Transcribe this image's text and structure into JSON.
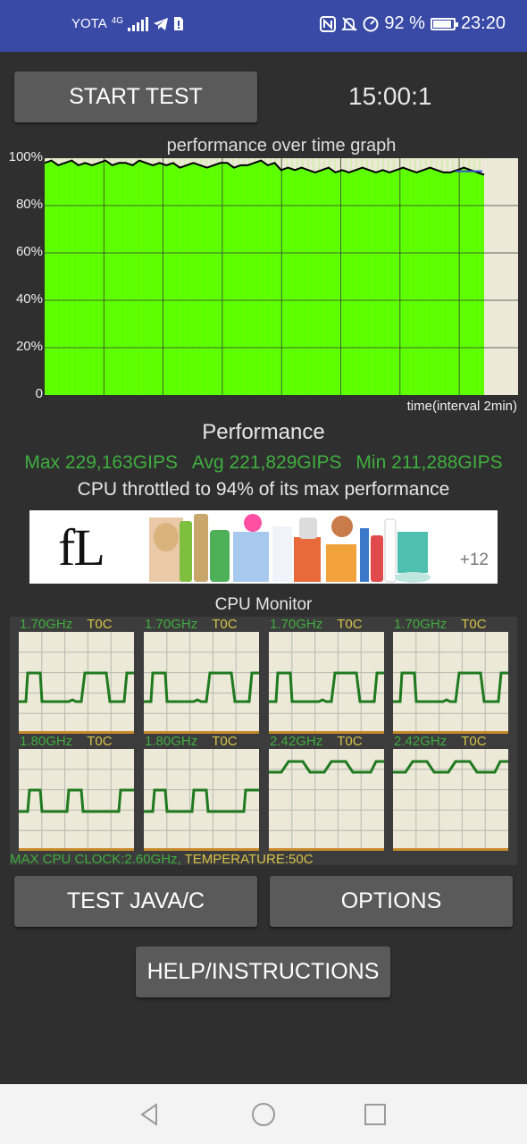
{
  "status_bar": {
    "carrier": "YOTA",
    "network": "4G",
    "battery_level": "92 %",
    "time": "23:20",
    "battery_fraction": 0.92,
    "icons": [
      "signal-icon",
      "telegram-icon",
      "sim-icon",
      "nfc-icon",
      "mute-icon",
      "speed-icon",
      "battery-icon"
    ]
  },
  "controls": {
    "start_test_label": "START TEST",
    "timer": "15:00:1"
  },
  "graph": {
    "title": "performance over time graph",
    "y_labels": [
      "100%",
      "80%",
      "60%",
      "40%",
      "20%",
      "0"
    ],
    "x_label": "time(interval 2min)",
    "chart_data": {
      "type": "area",
      "xlabel": "time(interval 2min)",
      "ylim": [
        0,
        100
      ],
      "grid": true,
      "colors": {
        "fill": "#5cff00",
        "line": "#000000",
        "background": "#ece9d8"
      },
      "values": [
        98,
        99,
        97,
        98,
        99,
        97,
        98,
        97,
        98,
        99,
        97,
        98,
        98,
        97,
        99,
        98,
        97,
        98,
        97,
        98,
        96,
        97,
        98,
        97,
        96,
        97,
        98,
        98,
        96,
        97,
        97,
        98,
        99,
        97,
        98,
        95,
        96,
        95,
        96,
        95,
        94,
        95,
        96,
        94,
        95,
        94,
        95,
        96,
        95,
        94,
        95,
        94,
        95,
        96,
        95,
        94,
        95,
        96,
        95,
        94,
        94,
        95,
        96,
        95,
        94,
        93
      ]
    }
  },
  "performance": {
    "title": "Performance",
    "max": "Max 229,163GIPS",
    "avg": "Avg 221,829GIPS",
    "min": "Min 211,288GIPS",
    "throttle_text": "CPU throttled to 94% of its max performance"
  },
  "ad": {
    "logo": "fL",
    "count": "+12"
  },
  "cpu_monitor": {
    "title": "CPU Monitor",
    "cores": [
      {
        "freq": "1.70GHz",
        "temp": "T0C"
      },
      {
        "freq": "1.70GHz",
        "temp": "T0C"
      },
      {
        "freq": "1.70GHz",
        "temp": "T0C"
      },
      {
        "freq": "1.70GHz",
        "temp": "T0C"
      },
      {
        "freq": "1.80GHz",
        "temp": "T0C"
      },
      {
        "freq": "1.80GHz",
        "temp": "T0C"
      },
      {
        "freq": "2.42GHz",
        "temp": "T0C"
      },
      {
        "freq": "2.42GHz",
        "temp": "T0C"
      }
    ],
    "max_clock": "MAX CPU CLOCK:2.60GHz,",
    "temperature": " TEMPERATURE:50C"
  },
  "buttons": {
    "test_java_label": "TEST JAVA/C",
    "options_label": "OPTIONS",
    "help_label": "HELP/INSTRUCTIONS"
  },
  "nav": {
    "icons": [
      "back-icon",
      "home-icon",
      "recents-icon"
    ]
  }
}
